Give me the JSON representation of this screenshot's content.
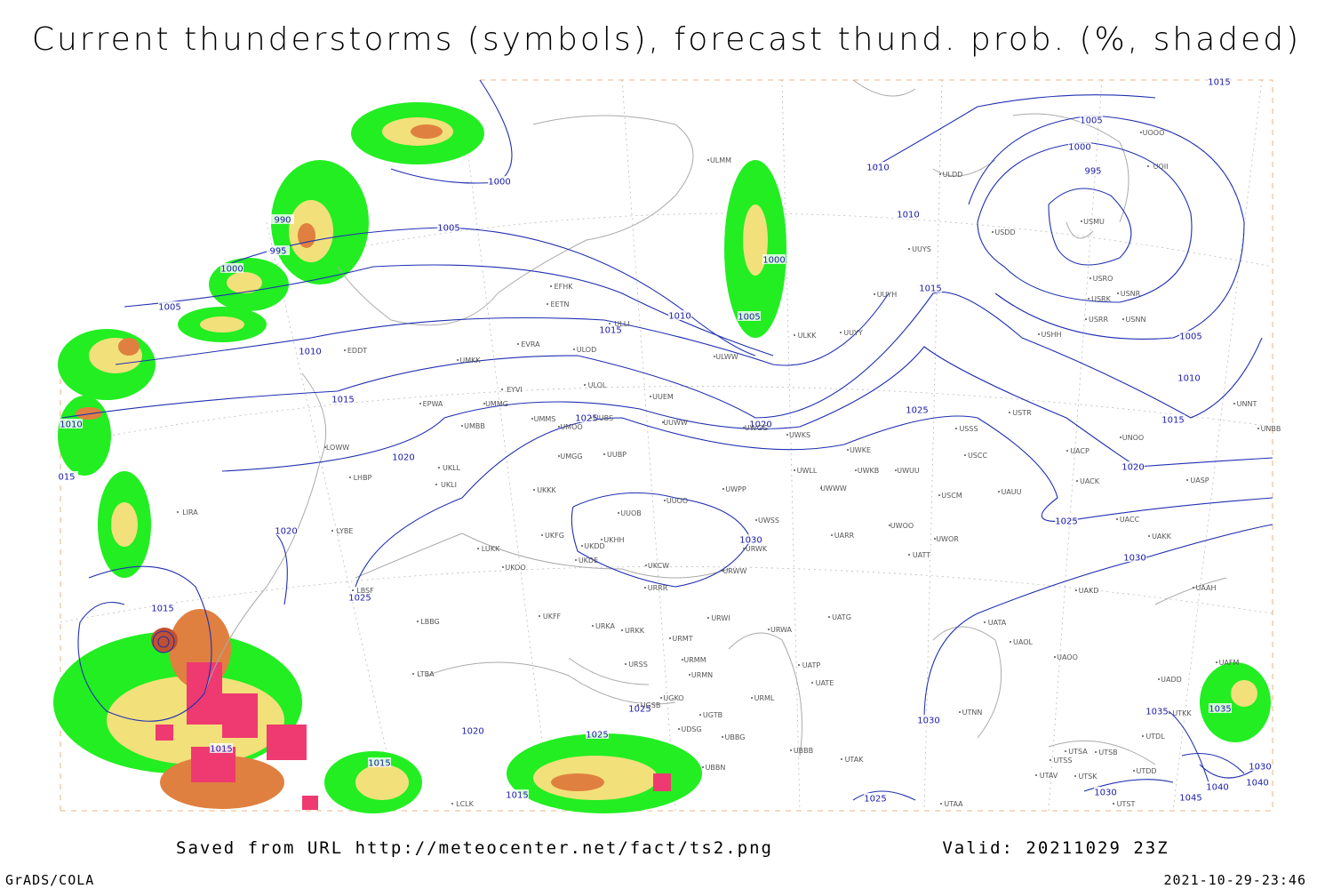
{
  "title": "Current thunderstorms (symbols), forecast thund. prob. (%, shaded)",
  "isobar_labels": [
    "1000",
    "1005",
    "990",
    "995",
    "1000",
    "1005",
    "1010",
    "1015",
    "1020",
    "1025",
    "1020",
    "1010",
    "1005",
    "1000",
    "1015",
    "1010",
    "1010",
    "1015",
    "1005",
    "1000",
    "995",
    "1005",
    "1010",
    "1015",
    "1020",
    "1025",
    "1030",
    "1025",
    "1030",
    "1020",
    "1025",
    "1015",
    "1015",
    "1015",
    "1015",
    "1020",
    "1025",
    "1025",
    "1025",
    "1030",
    "1030",
    "1035",
    "1035",
    "1040",
    "1045",
    "1030",
    "1040",
    "1010",
    "015",
    "1015"
  ],
  "stations": [
    "EFHK",
    "EETN",
    "EVRA",
    "ULLI",
    "ULOD",
    "UMKK",
    "EDDT",
    "EPWA",
    "UMMG",
    "EYVI",
    "ULOL",
    "UUEM",
    "UMMS",
    "UMOO",
    "UUBS",
    "UUWW",
    "UMBB",
    "LOWW",
    "UKLL",
    "UKLI",
    "LHBP",
    "UMGG",
    "UUBP",
    "UKKK",
    "UUOO",
    "UUOB",
    "LIRA",
    "LYBE",
    "LUKK",
    "UKHH",
    "UKDD",
    "UKFG",
    "UKDE",
    "UKOO",
    "UKCW",
    "URRR",
    "LBSF",
    "UKFF",
    "LBBG",
    "URKA",
    "URKK",
    "URWI",
    "URMT",
    "URSS",
    "URMM",
    "URMN",
    "LTBA",
    "UGKO",
    "UGSB",
    "UGTB",
    "UBBB",
    "UDSG",
    "UBBG",
    "UBBN",
    "LCLK",
    "ULMM",
    "ULDD",
    "UUYS",
    "UUYH",
    "UUYY",
    "ULKK",
    "ULWW",
    "UWGG",
    "UWKS",
    "UWKE",
    "UWKB",
    "UWUU",
    "UWLL",
    "UWWW",
    "UWPP",
    "UWSS",
    "URWK",
    "URWW",
    "UARR",
    "UWOO",
    "UWOR",
    "UATT",
    "USCM",
    "UAUU",
    "USCC",
    "USSS",
    "USTR",
    "UACP",
    "UACK",
    "UASP",
    "UACC",
    "UAKK",
    "UNOO",
    "UNNT",
    "UNBB",
    "UAKD",
    "UAAH",
    "UATG",
    "URWA",
    "UATP",
    "UATE",
    "URML",
    "UATA",
    "UAOL",
    "UAOO",
    "UTAK",
    "UTNN",
    "UTSA",
    "UTSB",
    "UTSS",
    "UTAV",
    "UTSK",
    "UTAA",
    "UTST",
    "UTDD",
    "UTDL",
    "UAFM",
    "UADD",
    "UTKK",
    "USMU",
    "USNN",
    "USRR",
    "USRK",
    "USNR",
    "USRO",
    "USHH",
    "USDD",
    "UOOO",
    "UOII"
  ],
  "footer": {
    "source": "Saved from URL http://meteocenter.net/fact/ts2.png",
    "valid": "Valid: 20211029 23Z",
    "software": "GrADS/COLA",
    "timestamp": "2021-10-29-23:46"
  }
}
